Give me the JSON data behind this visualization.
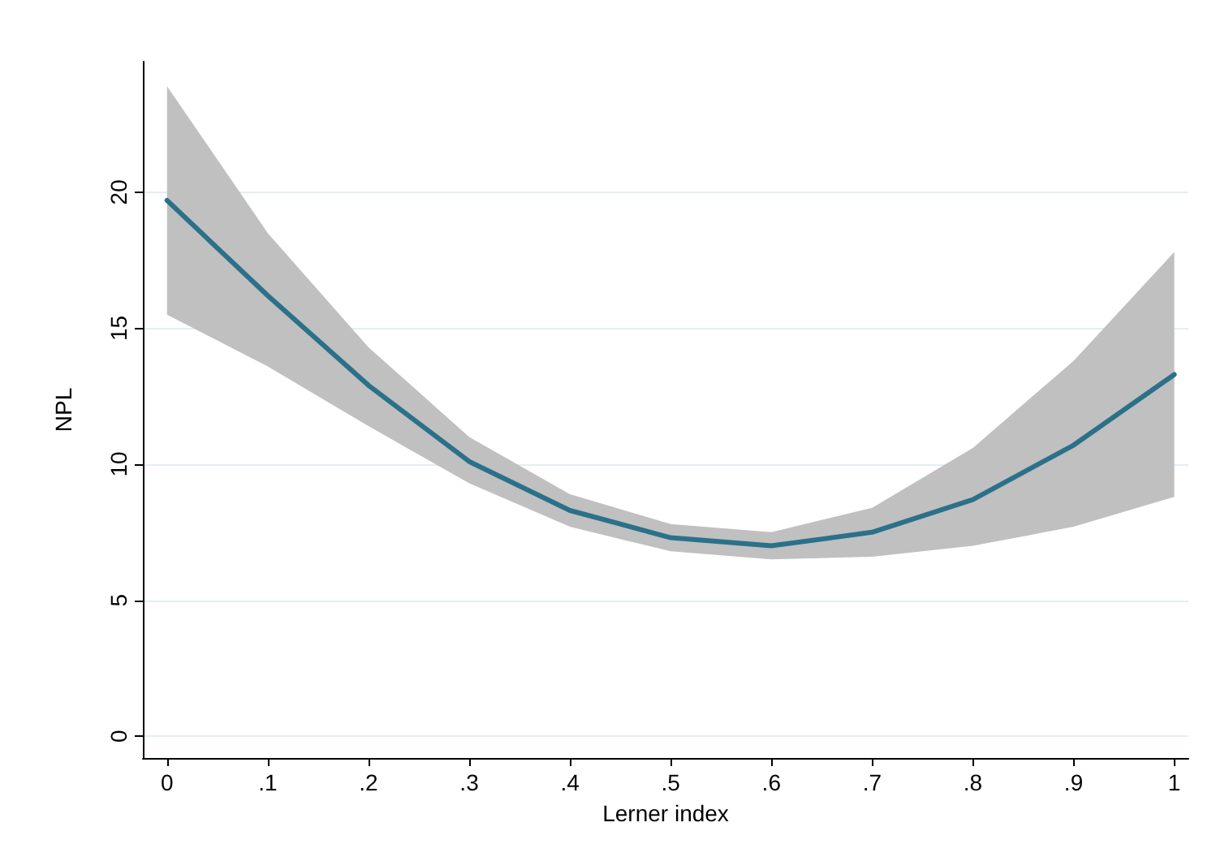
{
  "chart_data": {
    "type": "line",
    "xlabel": "Lerner index",
    "ylabel": "NPL",
    "x": [
      0,
      0.1,
      0.2,
      0.3,
      0.4,
      0.5,
      0.6,
      0.7,
      0.8,
      0.9,
      1
    ],
    "series": [
      {
        "color": "#2a7189",
        "values": [
          19.7,
          16.2,
          12.9,
          10.1,
          8.3,
          7.3,
          7.0,
          7.5,
          8.7,
          10.7,
          13.3
        ],
        "lower": [
          15.5,
          13.6,
          11.4,
          9.3,
          7.7,
          6.8,
          6.5,
          6.6,
          7.0,
          7.7,
          8.8
        ],
        "upper": [
          23.9,
          18.5,
          14.3,
          11.0,
          8.9,
          7.8,
          7.5,
          8.4,
          10.6,
          13.8,
          17.8
        ]
      }
    ],
    "xlim": [
      -0.024,
      1.014
    ],
    "xticks": [
      0,
      {
        "value": 0.1,
        "label": ".1"
      },
      {
        "value": 0.2,
        "label": ".2"
      },
      {
        "value": 0.3,
        "label": ".3"
      },
      {
        "value": 0.4,
        "label": ".4"
      },
      {
        "value": 0.5,
        "label": ".5"
      },
      {
        "value": 0.6,
        "label": ".6"
      },
      {
        "value": 0.7,
        "label": ".7"
      },
      {
        "value": 0.8,
        "label": ".8"
      },
      {
        "value": 0.9,
        "label": ".9"
      },
      1
    ],
    "ylim": [
      -0.8,
      24.8
    ],
    "yticks": [
      0,
      5,
      10,
      15,
      20
    ],
    "grid": "y",
    "marker": "none",
    "line_style": "solid"
  }
}
